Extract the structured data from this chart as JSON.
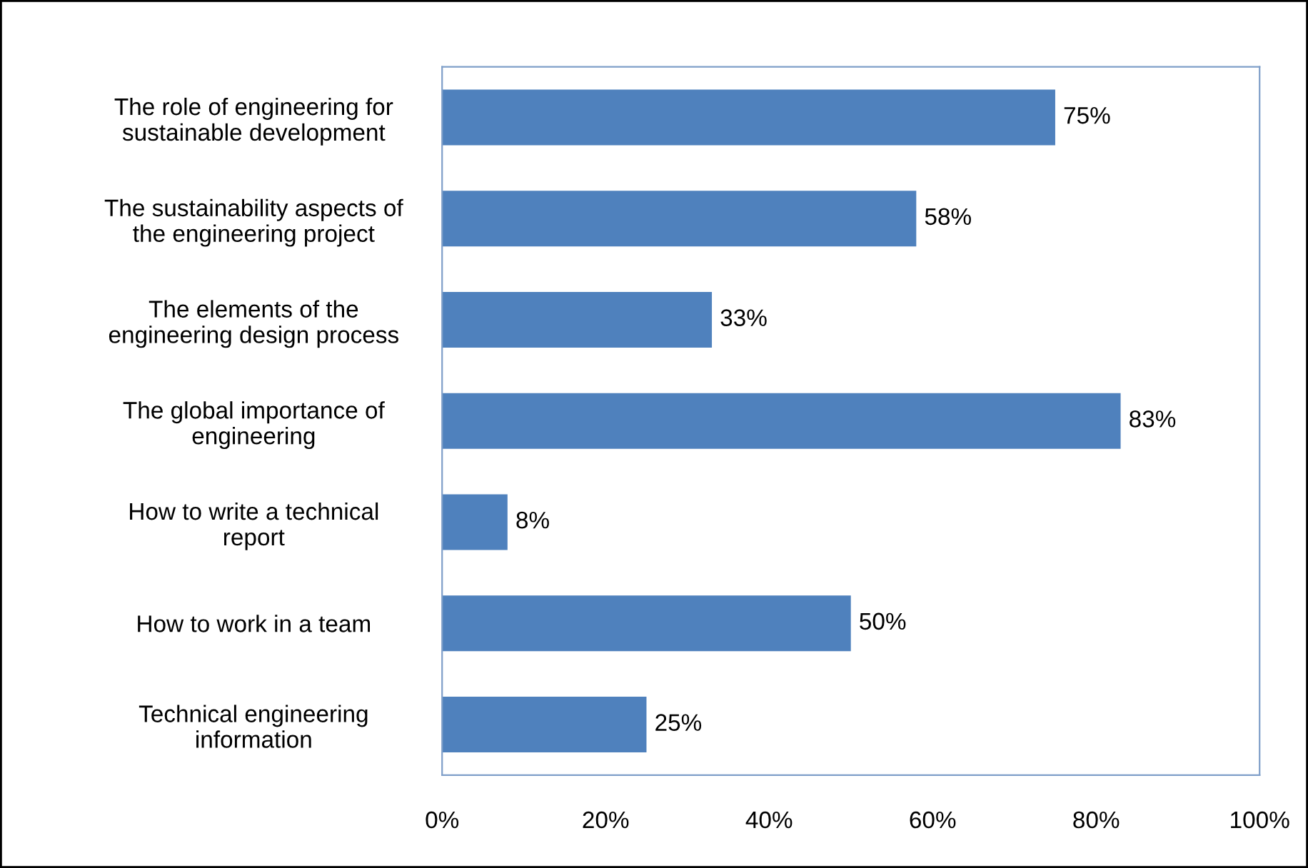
{
  "chart_data": {
    "type": "bar",
    "orientation": "horizontal",
    "categories": [
      "The role of engineering for\nsustainable development",
      "The sustainability aspects of\nthe engineering project",
      "The elements of the\nengineering design process",
      "The global importance of\nengineering",
      "How to write a technical\nreport",
      "How to work in a team",
      "Technical engineering\ninformation"
    ],
    "values": [
      75,
      58,
      33,
      83,
      8,
      50,
      25
    ],
    "value_labels": [
      "75%",
      "58%",
      "33%",
      "83%",
      "8%",
      "50%",
      "25%"
    ],
    "color": "#4f81bd",
    "xlim": [
      0,
      100
    ],
    "xticks": [
      {
        "value": 0,
        "label": "0%"
      },
      {
        "value": 20,
        "label": "20%"
      },
      {
        "value": 40,
        "label": "40%"
      },
      {
        "value": 60,
        "label": "60%"
      },
      {
        "value": 80,
        "label": "80%"
      },
      {
        "value": 100,
        "label": "100%"
      }
    ],
    "grid": false,
    "legend": false
  }
}
